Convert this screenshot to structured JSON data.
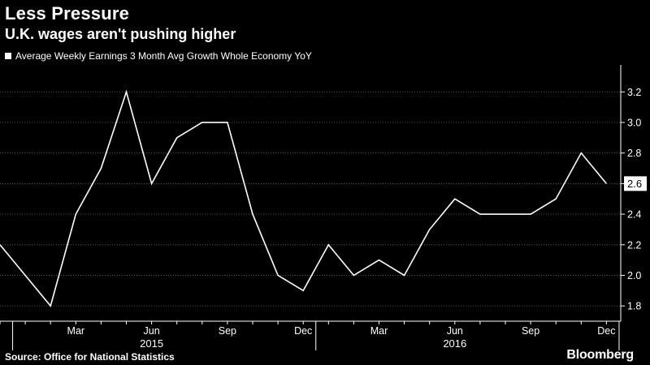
{
  "header": {
    "title": "Less Pressure",
    "subtitle": "U.K. wages aren't pushing higher"
  },
  "legend": {
    "label": "Average Weekly Earnings 3 Month Avg Growth Whole Economy YoY"
  },
  "footer": {
    "source": "Source: Office for National Statistics",
    "brand": "Bloomberg"
  },
  "colors": {
    "background": "#000000",
    "line": "#ffffff",
    "grid": "#555555"
  },
  "chart_data": {
    "type": "line",
    "title": "Less Pressure",
    "subtitle": "U.K. wages aren't pushing higher",
    "xlabel": "",
    "ylabel": "",
    "ylim": [
      1.7,
      3.35
    ],
    "grid": true,
    "legend_position": "top-left",
    "y_ticks": [
      "1.8",
      "2.0",
      "2.2",
      "2.4",
      "2.6",
      "2.8",
      "3.0",
      "3.2"
    ],
    "x_tick_labels": [
      "Mar",
      "Jun",
      "Sep",
      "Dec",
      "Mar",
      "Jun",
      "Sep",
      "Dec"
    ],
    "year_labels": [
      "2015",
      "2016"
    ],
    "last_value_label": "2.6",
    "x": [
      "2014-12",
      "2015-01",
      "2015-02",
      "2015-03",
      "2015-04",
      "2015-05",
      "2015-06",
      "2015-07",
      "2015-08",
      "2015-09",
      "2015-10",
      "2015-11",
      "2015-12",
      "2016-01",
      "2016-02",
      "2016-03",
      "2016-04",
      "2016-05",
      "2016-06",
      "2016-07",
      "2016-08",
      "2016-09",
      "2016-10",
      "2016-11",
      "2016-12"
    ],
    "series": [
      {
        "name": "Average Weekly Earnings 3 Month Avg Growth Whole Economy YoY",
        "values": [
          2.2,
          2.0,
          1.8,
          2.4,
          2.7,
          3.2,
          2.6,
          2.9,
          3.0,
          3.0,
          2.4,
          2.0,
          1.9,
          2.2,
          2.0,
          2.1,
          2.0,
          2.3,
          2.5,
          2.4,
          2.4,
          2.4,
          2.5,
          2.8,
          2.6
        ]
      }
    ]
  }
}
